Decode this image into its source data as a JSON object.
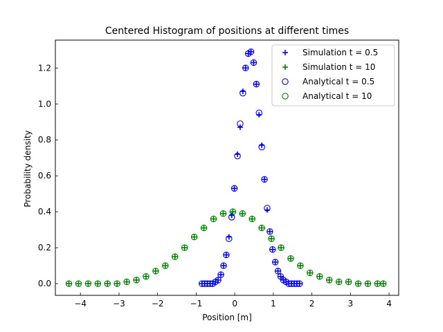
{
  "chart_data": {
    "type": "scatter",
    "title": "Centered Histogram of positions at different times",
    "xlabel": "Position [m]",
    "ylabel": "Probability density",
    "xlim": [
      -4.65,
      4.25
    ],
    "ylim": [
      -0.065,
      1.355
    ],
    "xticks": [
      -4,
      -3,
      -2,
      -1,
      0,
      1,
      2,
      3,
      4
    ],
    "xtick_labels": [
      "−4",
      "−3",
      "−2",
      "−1",
      "0",
      "1",
      "2",
      "3",
      "4"
    ],
    "yticks": [
      0.0,
      0.2,
      0.4,
      0.6,
      0.8,
      1.0,
      1.2
    ],
    "ytick_labels": [
      "0.0",
      "0.2",
      "0.4",
      "0.6",
      "0.8",
      "1.0",
      "1.2"
    ],
    "grid": false,
    "legend_position": "top-right",
    "series": [
      {
        "name": "Simulation t = 0.5",
        "marker": "plus",
        "color": "#0000ff",
        "x": [
          -0.85,
          -0.78,
          -0.71,
          -0.64,
          -0.57,
          -0.5,
          -0.43,
          -0.36,
          -0.29,
          -0.22,
          -0.15,
          -0.08,
          -0.01,
          0.07,
          0.14,
          0.21,
          0.28,
          0.35,
          0.42,
          0.49,
          0.56,
          0.63,
          0.7,
          0.77,
          0.84,
          0.91,
          0.98,
          1.05,
          1.12,
          1.19,
          1.26,
          1.33,
          1.4,
          1.47,
          1.54,
          1.61,
          1.68
        ],
        "y": [
          0.0,
          0.0,
          0.0,
          0.0,
          0.0,
          0.01,
          0.02,
          0.05,
          0.1,
          0.16,
          0.26,
          0.38,
          0.53,
          0.72,
          0.87,
          1.07,
          1.2,
          1.28,
          1.29,
          1.23,
          1.11,
          0.94,
          0.77,
          0.58,
          0.41,
          0.29,
          0.19,
          0.12,
          0.07,
          0.04,
          0.02,
          0.01,
          0.0,
          0.0,
          0.0,
          0.0,
          0.0
        ]
      },
      {
        "name": "Simulation t = 10",
        "marker": "plus",
        "color": "#008000",
        "x": [
          -4.3,
          -4.05,
          -3.8,
          -3.55,
          -3.3,
          -3.05,
          -2.8,
          -2.55,
          -2.3,
          -2.05,
          -1.8,
          -1.55,
          -1.3,
          -1.05,
          -0.8,
          -0.55,
          -0.3,
          -0.05,
          0.2,
          0.45,
          0.7,
          0.95,
          1.2,
          1.45,
          1.7,
          1.95,
          2.2,
          2.45,
          2.7,
          2.95,
          3.2,
          3.45,
          3.7,
          3.85
        ],
        "y": [
          0.0,
          0.0,
          0.0,
          0.0,
          0.0,
          0.0,
          0.01,
          0.02,
          0.04,
          0.07,
          0.1,
          0.15,
          0.2,
          0.26,
          0.31,
          0.36,
          0.39,
          0.4,
          0.39,
          0.36,
          0.31,
          0.25,
          0.2,
          0.14,
          0.1,
          0.06,
          0.04,
          0.02,
          0.01,
          0.01,
          0.0,
          0.0,
          0.0,
          0.0
        ]
      },
      {
        "name": "Analytical t = 0.5",
        "marker": "circle",
        "color": "#0000ff",
        "x": [
          -0.85,
          -0.78,
          -0.71,
          -0.64,
          -0.57,
          -0.5,
          -0.43,
          -0.36,
          -0.29,
          -0.22,
          -0.15,
          -0.08,
          -0.01,
          0.07,
          0.14,
          0.21,
          0.28,
          0.35,
          0.42,
          0.49,
          0.56,
          0.63,
          0.7,
          0.77,
          0.84,
          0.91,
          0.98,
          1.05,
          1.12,
          1.19,
          1.26,
          1.33,
          1.4,
          1.47,
          1.54,
          1.61,
          1.68
        ],
        "y": [
          0.0,
          0.0,
          0.0,
          0.0,
          0.0,
          0.01,
          0.02,
          0.05,
          0.1,
          0.16,
          0.25,
          0.37,
          0.53,
          0.71,
          0.89,
          1.06,
          1.2,
          1.28,
          1.29,
          1.23,
          1.11,
          0.95,
          0.76,
          0.58,
          0.42,
          0.29,
          0.19,
          0.12,
          0.07,
          0.04,
          0.02,
          0.01,
          0.0,
          0.0,
          0.0,
          0.0,
          0.0
        ]
      },
      {
        "name": "Analytical t = 10",
        "marker": "circle",
        "color": "#008000",
        "x": [
          -4.3,
          -4.05,
          -3.8,
          -3.55,
          -3.3,
          -3.05,
          -2.8,
          -2.55,
          -2.3,
          -2.05,
          -1.8,
          -1.55,
          -1.3,
          -1.05,
          -0.8,
          -0.55,
          -0.3,
          -0.05,
          0.2,
          0.45,
          0.7,
          0.95,
          1.2,
          1.45,
          1.7,
          1.95,
          2.2,
          2.45,
          2.7,
          2.95,
          3.2,
          3.45,
          3.7,
          3.85
        ],
        "y": [
          0.0,
          0.0,
          0.0,
          0.0,
          0.0,
          0.0,
          0.01,
          0.02,
          0.04,
          0.07,
          0.1,
          0.15,
          0.2,
          0.26,
          0.31,
          0.36,
          0.39,
          0.4,
          0.39,
          0.36,
          0.31,
          0.25,
          0.2,
          0.14,
          0.1,
          0.06,
          0.04,
          0.02,
          0.01,
          0.01,
          0.0,
          0.0,
          0.0,
          0.0
        ]
      }
    ]
  }
}
